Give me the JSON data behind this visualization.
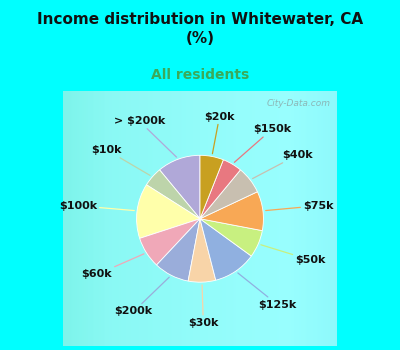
{
  "title": "Income distribution in Whitewater, CA\n(%)",
  "subtitle": "All residents",
  "title_color": "#111111",
  "subtitle_color": "#3aaa5a",
  "bg_cyan": "#00ffff",
  "bg_chart": "#d8ede4",
  "watermark": "City-Data.com",
  "labels": [
    "> $200k",
    "$10k",
    "$100k",
    "$60k",
    "$200k",
    "$30k",
    "$125k",
    "$50k",
    "$75k",
    "$40k",
    "$150k",
    "$20k"
  ],
  "values": [
    11,
    5,
    14,
    8,
    9,
    7,
    11,
    7,
    10,
    7,
    5,
    6
  ],
  "colors": [
    "#b0a8d8",
    "#bdd4aa",
    "#ffffaa",
    "#f0a8b8",
    "#9aadda",
    "#f8d4a8",
    "#90b0e0",
    "#c8f080",
    "#f8a855",
    "#c8bfb0",
    "#e87880",
    "#c8a020"
  ],
  "startangle": 90,
  "label_fontsize": 8,
  "figsize": [
    4.0,
    3.5
  ],
  "dpi": 100
}
